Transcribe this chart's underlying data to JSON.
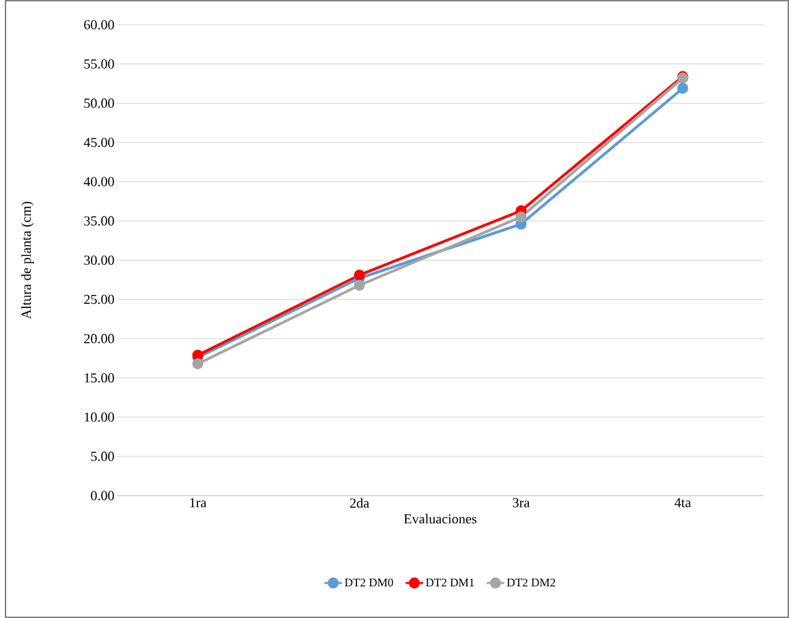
{
  "chart_data": {
    "type": "line",
    "xlabel": "Evaluaciones",
    "ylabel": "Altura de planta (cm)",
    "categories": [
      "1ra",
      "2da",
      "3ra",
      "4ta"
    ],
    "series": [
      {
        "name": "DT2 DM0",
        "color": "#5b9bd5",
        "values": [
          17.6,
          27.7,
          34.6,
          51.9
        ]
      },
      {
        "name": "DT2 DM1",
        "color": "#ff0000",
        "values": [
          17.9,
          28.1,
          36.3,
          53.4
        ]
      },
      {
        "name": "DT2 DM2",
        "color": "#a5a5a5",
        "values": [
          16.8,
          26.8,
          35.5,
          53.2
        ]
      }
    ],
    "ylim": [
      0,
      60
    ],
    "yticks": [
      {
        "value": 0,
        "label": "0.00"
      },
      {
        "value": 5,
        "label": "5.00"
      },
      {
        "value": 10,
        "label": "10.00"
      },
      {
        "value": 15,
        "label": "15.00"
      },
      {
        "value": 20,
        "label": "20.00"
      },
      {
        "value": 25,
        "label": "25.00"
      },
      {
        "value": 30,
        "label": "30.00"
      },
      {
        "value": 35,
        "label": "35.00"
      },
      {
        "value": 40,
        "label": "40.00"
      },
      {
        "value": 45,
        "label": "45.00"
      },
      {
        "value": 50,
        "label": "50.00"
      },
      {
        "value": 55,
        "label": "55.00"
      },
      {
        "value": 60,
        "label": "60.00"
      }
    ],
    "grid": "y",
    "legend": "bottom",
    "marker": "circle",
    "line_style": "solid"
  }
}
